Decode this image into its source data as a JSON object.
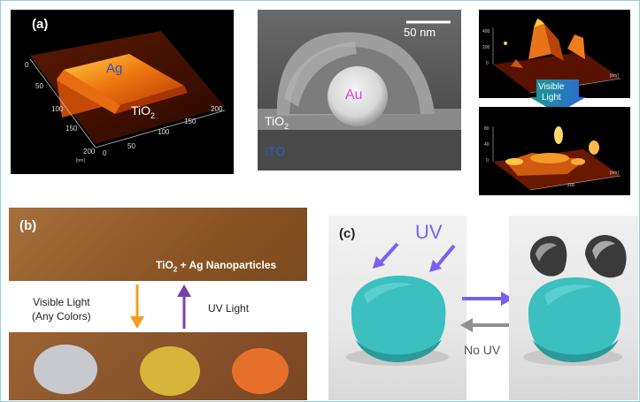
{
  "panel_a": {
    "label": "(a)",
    "afm": {
      "ag": "Ag",
      "tio2": "TiO",
      "tio2_sub": "2",
      "ticks_left": [
        "0",
        "50",
        "100",
        "150",
        "200"
      ],
      "ticks_right": [
        "0",
        "50",
        "100",
        "150",
        "200"
      ],
      "unit": "[nm]"
    },
    "sem": {
      "scale": "50 nm",
      "au": "Au",
      "tio2": "TiO",
      "tio2_sub": "2",
      "ito": "ITO"
    },
    "afm_small": {
      "top_ticks_z": [
        "400",
        "200",
        "0"
      ],
      "bottom_ticks_z": [
        "80",
        "40",
        "0"
      ],
      "tick": "200",
      "unit": "[nm]",
      "arrow_line1": "Visible",
      "arrow_line2": "Light"
    }
  },
  "panel_b": {
    "label": "(b)",
    "film": "TiO",
    "film_sub": "2",
    "film_rest": " + Ag Nanoparticles",
    "visible_line1": "Visible Light",
    "visible_line2": "(Any Colors)",
    "uv": "UV Light",
    "colors": {
      "down_arrow": "#f0a020",
      "up_arrow": "#7a3fa8"
    }
  },
  "panel_c": {
    "label": "(c)",
    "uv": "UV",
    "no_uv": "No UV",
    "colors": {
      "uv_arrow": "#7b5ff0",
      "back_arrow": "#909090",
      "clay": "#3bbfbf"
    }
  }
}
